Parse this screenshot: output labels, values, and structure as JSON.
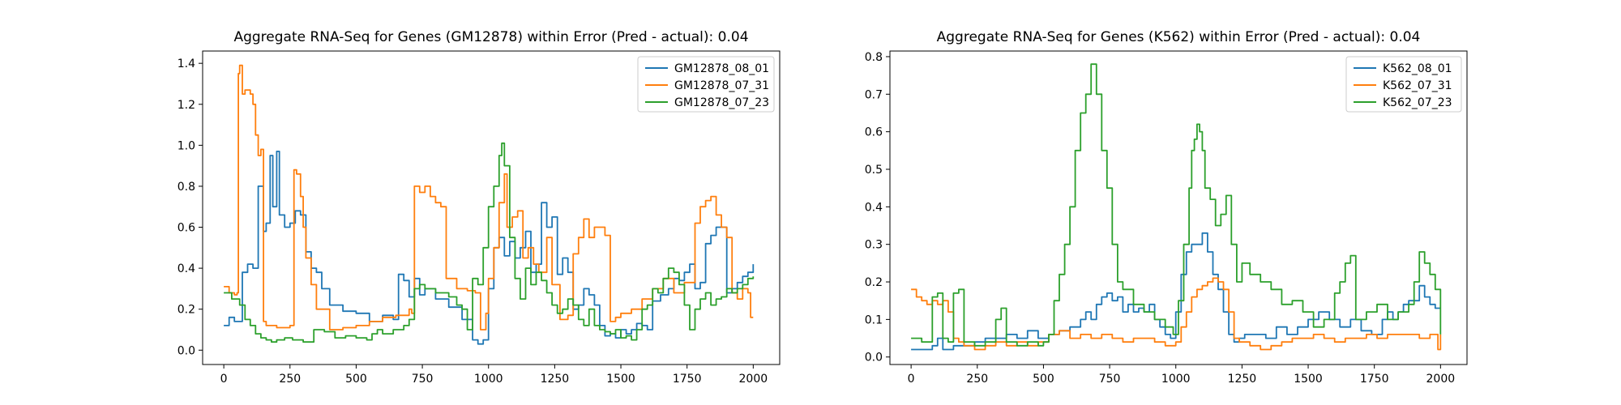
{
  "chart_data": [
    {
      "type": "line",
      "title": "Aggregate RNA-Seq for Genes (GM12878) within Error (Pred - actual): 0.04",
      "xlabel": "",
      "ylabel": "",
      "xlim": [
        -80,
        2100
      ],
      "ylim": [
        -0.07,
        1.46
      ],
      "xticks": [
        0,
        250,
        500,
        750,
        1000,
        1250,
        1500,
        1750,
        2000
      ],
      "yticks": [
        0.0,
        0.2,
        0.4,
        0.6,
        0.8,
        1.0,
        1.2,
        1.4
      ],
      "ytick_labels": [
        "0.0",
        "0.2",
        "0.4",
        "0.6",
        "0.8",
        "1.0",
        "1.2",
        "1.4"
      ],
      "legend": "top-right",
      "grid": false,
      "series": [
        {
          "name": "GM12878_08_01",
          "color": "#1f77b4",
          "x": [
            0,
            20,
            40,
            60,
            70,
            90,
            110,
            130,
            150,
            160,
            175,
            185,
            200,
            210,
            230,
            250,
            270,
            290,
            310,
            330,
            350,
            370,
            400,
            450,
            500,
            550,
            600,
            640,
            660,
            680,
            700,
            720,
            740,
            760,
            800,
            850,
            900,
            940,
            960,
            980,
            1000,
            1020,
            1040,
            1060,
            1080,
            1100,
            1120,
            1140,
            1160,
            1180,
            1200,
            1220,
            1240,
            1260,
            1280,
            1300,
            1320,
            1340,
            1360,
            1380,
            1400,
            1420,
            1440,
            1460,
            1480,
            1500,
            1520,
            1540,
            1560,
            1580,
            1600,
            1620,
            1650,
            1680,
            1700,
            1720,
            1740,
            1760,
            1780,
            1800,
            1820,
            1840,
            1860,
            1880,
            1900,
            1920,
            1940,
            1960,
            1980,
            2000
          ],
          "values": [
            0.12,
            0.16,
            0.14,
            0.14,
            0.38,
            0.42,
            0.4,
            0.8,
            0.58,
            0.62,
            0.95,
            0.7,
            0.97,
            0.66,
            0.6,
            0.62,
            0.68,
            0.66,
            0.48,
            0.4,
            0.38,
            0.3,
            0.22,
            0.19,
            0.18,
            0.14,
            0.17,
            0.15,
            0.37,
            0.34,
            0.26,
            0.35,
            0.27,
            0.3,
            0.25,
            0.21,
            0.15,
            0.05,
            0.03,
            0.05,
            0.3,
            0.5,
            0.55,
            0.46,
            0.53,
            0.45,
            0.5,
            0.58,
            0.38,
            0.42,
            0.72,
            0.6,
            0.65,
            0.37,
            0.45,
            0.38,
            0.2,
            0.22,
            0.3,
            0.27,
            0.22,
            0.12,
            0.07,
            0.08,
            0.06,
            0.1,
            0.08,
            0.1,
            0.13,
            0.12,
            0.1,
            0.24,
            0.27,
            0.3,
            0.35,
            0.34,
            0.38,
            0.42,
            0.3,
            0.33,
            0.52,
            0.56,
            0.6,
            0.6,
            0.28,
            0.3,
            0.33,
            0.36,
            0.38,
            0.42
          ]
        },
        {
          "name": "GM12878_07_31",
          "color": "#ff7f0e",
          "x": [
            0,
            20,
            40,
            50,
            55,
            60,
            70,
            80,
            100,
            110,
            120,
            130,
            140,
            150,
            160,
            200,
            250,
            265,
            275,
            290,
            300,
            310,
            330,
            350,
            400,
            450,
            500,
            550,
            600,
            650,
            700,
            710,
            720,
            740,
            760,
            780,
            800,
            820,
            840,
            880,
            920,
            950,
            970,
            990,
            1000,
            1020,
            1040,
            1060,
            1070,
            1090,
            1110,
            1130,
            1150,
            1170,
            1190,
            1220,
            1240,
            1270,
            1300,
            1320,
            1340,
            1360,
            1380,
            1400,
            1420,
            1440,
            1460,
            1480,
            1500,
            1540,
            1580,
            1620,
            1660,
            1700,
            1740,
            1780,
            1800,
            1820,
            1840,
            1860,
            1880,
            1900,
            1920,
            1940,
            1960,
            1980,
            1990,
            2000
          ],
          "values": [
            0.31,
            0.28,
            0.27,
            0.28,
            1.35,
            1.39,
            1.25,
            1.27,
            1.25,
            1.2,
            1.05,
            0.95,
            0.98,
            0.14,
            0.12,
            0.11,
            0.12,
            0.88,
            0.86,
            0.75,
            0.6,
            0.45,
            0.32,
            0.2,
            0.1,
            0.11,
            0.12,
            0.14,
            0.16,
            0.17,
            0.2,
            0.18,
            0.8,
            0.77,
            0.8,
            0.75,
            0.72,
            0.7,
            0.35,
            0.3,
            0.29,
            0.28,
            0.1,
            0.18,
            0.35,
            0.5,
            0.72,
            0.86,
            0.6,
            0.65,
            0.68,
            0.45,
            0.5,
            0.42,
            0.38,
            0.55,
            0.32,
            0.15,
            0.17,
            0.47,
            0.55,
            0.64,
            0.55,
            0.6,
            0.6,
            0.56,
            0.14,
            0.16,
            0.18,
            0.2,
            0.25,
            0.3,
            0.35,
            0.28,
            0.33,
            0.62,
            0.7,
            0.73,
            0.75,
            0.66,
            0.6,
            0.55,
            0.28,
            0.25,
            0.3,
            0.28,
            0.16,
            0.16
          ]
        },
        {
          "name": "GM12878_07_23",
          "color": "#2ca02c",
          "x": [
            0,
            30,
            60,
            80,
            100,
            120,
            140,
            160,
            180,
            200,
            230,
            260,
            300,
            340,
            380,
            420,
            460,
            500,
            540,
            560,
            580,
            600,
            640,
            680,
            700,
            720,
            740,
            760,
            800,
            850,
            880,
            900,
            920,
            940,
            960,
            980,
            1000,
            1020,
            1040,
            1050,
            1060,
            1080,
            1100,
            1120,
            1140,
            1160,
            1180,
            1200,
            1220,
            1240,
            1260,
            1280,
            1300,
            1320,
            1340,
            1360,
            1380,
            1400,
            1420,
            1440,
            1460,
            1480,
            1500,
            1520,
            1540,
            1560,
            1580,
            1600,
            1620,
            1640,
            1660,
            1680,
            1700,
            1720,
            1740,
            1760,
            1780,
            1800,
            1820,
            1840,
            1860,
            1880,
            1900,
            1920,
            1940,
            1960,
            1980,
            2000
          ],
          "values": [
            0.28,
            0.25,
            0.22,
            0.15,
            0.12,
            0.08,
            0.06,
            0.05,
            0.04,
            0.05,
            0.06,
            0.05,
            0.04,
            0.1,
            0.09,
            0.06,
            0.07,
            0.06,
            0.05,
            0.08,
            0.1,
            0.08,
            0.1,
            0.12,
            0.15,
            0.3,
            0.32,
            0.3,
            0.28,
            0.26,
            0.22,
            0.2,
            0.1,
            0.35,
            0.32,
            0.5,
            0.7,
            0.8,
            0.95,
            1.01,
            0.9,
            0.55,
            0.35,
            0.25,
            0.4,
            0.32,
            0.38,
            0.34,
            0.28,
            0.22,
            0.18,
            0.2,
            0.25,
            0.22,
            0.15,
            0.12,
            0.2,
            0.12,
            0.1,
            0.09,
            0.08,
            0.1,
            0.06,
            0.07,
            0.05,
            0.1,
            0.2,
            0.22,
            0.3,
            0.28,
            0.35,
            0.4,
            0.38,
            0.32,
            0.22,
            0.1,
            0.2,
            0.25,
            0.28,
            0.22,
            0.25,
            0.26,
            0.3,
            0.28,
            0.3,
            0.32,
            0.35,
            0.36
          ]
        }
      ]
    },
    {
      "type": "line",
      "title": "Aggregate RNA-Seq for Genes (K562) within Error (Pred - actual): 0.04",
      "xlabel": "",
      "ylabel": "",
      "xlim": [
        -80,
        2100
      ],
      "ylim": [
        -0.02,
        0.815
      ],
      "xticks": [
        0,
        250,
        500,
        750,
        1000,
        1250,
        1500,
        1750,
        2000
      ],
      "yticks": [
        0.0,
        0.1,
        0.2,
        0.3,
        0.4,
        0.5,
        0.6,
        0.7,
        0.8
      ],
      "ytick_labels": [
        "0.0",
        "0.1",
        "0.2",
        "0.3",
        "0.4",
        "0.5",
        "0.6",
        "0.7",
        "0.8"
      ],
      "legend": "top-right",
      "grid": false,
      "series": [
        {
          "name": "K562_08_01",
          "color": "#1f77b4",
          "x": [
            0,
            40,
            80,
            100,
            120,
            160,
            200,
            240,
            280,
            320,
            360,
            400,
            440,
            480,
            520,
            560,
            600,
            640,
            660,
            680,
            700,
            720,
            740,
            760,
            780,
            800,
            820,
            840,
            860,
            880,
            900,
            920,
            940,
            960,
            980,
            1000,
            1020,
            1040,
            1060,
            1080,
            1100,
            1120,
            1140,
            1160,
            1180,
            1200,
            1220,
            1240,
            1260,
            1300,
            1340,
            1380,
            1420,
            1460,
            1500,
            1540,
            1580,
            1620,
            1660,
            1700,
            1740,
            1780,
            1800,
            1820,
            1840,
            1860,
            1880,
            1900,
            1920,
            1940,
            1960,
            1980,
            2000
          ],
          "values": [
            0.02,
            0.02,
            0.03,
            0.05,
            0.02,
            0.03,
            0.03,
            0.04,
            0.05,
            0.05,
            0.06,
            0.05,
            0.07,
            0.05,
            0.06,
            0.07,
            0.08,
            0.1,
            0.12,
            0.1,
            0.14,
            0.16,
            0.17,
            0.15,
            0.16,
            0.12,
            0.14,
            0.12,
            0.13,
            0.12,
            0.14,
            0.1,
            0.08,
            0.06,
            0.05,
            0.12,
            0.22,
            0.28,
            0.3,
            0.3,
            0.33,
            0.28,
            0.22,
            0.18,
            0.12,
            0.06,
            0.04,
            0.05,
            0.06,
            0.06,
            0.05,
            0.08,
            0.06,
            0.08,
            0.1,
            0.12,
            0.1,
            0.08,
            0.1,
            0.07,
            0.06,
            0.1,
            0.12,
            0.1,
            0.12,
            0.14,
            0.15,
            0.15,
            0.19,
            0.16,
            0.14,
            0.13,
            0.13
          ]
        },
        {
          "name": "K562_07_31",
          "color": "#ff7f0e",
          "x": [
            0,
            20,
            40,
            60,
            80,
            100,
            120,
            140,
            160,
            180,
            200,
            240,
            280,
            320,
            360,
            400,
            440,
            480,
            520,
            560,
            600,
            640,
            680,
            720,
            760,
            800,
            840,
            880,
            920,
            960,
            1000,
            1020,
            1040,
            1060,
            1080,
            1100,
            1120,
            1140,
            1160,
            1180,
            1200,
            1220,
            1240,
            1280,
            1320,
            1360,
            1400,
            1440,
            1480,
            1520,
            1560,
            1600,
            1640,
            1680,
            1720,
            1760,
            1800,
            1840,
            1880,
            1920,
            1960,
            1980,
            1990,
            2000
          ],
          "values": [
            0.18,
            0.16,
            0.15,
            0.14,
            0.15,
            0.14,
            0.15,
            0.12,
            0.05,
            0.04,
            0.03,
            0.02,
            0.03,
            0.04,
            0.03,
            0.04,
            0.03,
            0.04,
            0.06,
            0.07,
            0.05,
            0.06,
            0.05,
            0.06,
            0.05,
            0.04,
            0.05,
            0.05,
            0.04,
            0.03,
            0.04,
            0.08,
            0.12,
            0.16,
            0.18,
            0.19,
            0.2,
            0.21,
            0.2,
            0.18,
            0.12,
            0.05,
            0.04,
            0.03,
            0.02,
            0.03,
            0.04,
            0.05,
            0.05,
            0.06,
            0.05,
            0.04,
            0.05,
            0.05,
            0.06,
            0.05,
            0.06,
            0.06,
            0.06,
            0.05,
            0.06,
            0.06,
            0.02,
            0.06
          ]
        },
        {
          "name": "K562_07_23",
          "color": "#2ca02c",
          "x": [
            0,
            40,
            80,
            100,
            120,
            140,
            160,
            180,
            200,
            240,
            280,
            320,
            340,
            360,
            400,
            440,
            480,
            500,
            520,
            540,
            560,
            580,
            600,
            620,
            640,
            660,
            680,
            700,
            720,
            740,
            760,
            780,
            800,
            840,
            880,
            920,
            960,
            990,
            1010,
            1030,
            1050,
            1060,
            1070,
            1080,
            1090,
            1100,
            1110,
            1130,
            1150,
            1170,
            1190,
            1210,
            1230,
            1250,
            1280,
            1320,
            1360,
            1400,
            1440,
            1480,
            1520,
            1560,
            1600,
            1620,
            1640,
            1660,
            1680,
            1720,
            1760,
            1800,
            1840,
            1880,
            1900,
            1920,
            1940,
            1960,
            1980,
            2000
          ],
          "values": [
            0.05,
            0.04,
            0.16,
            0.17,
            0.05,
            0.04,
            0.17,
            0.18,
            0.04,
            0.03,
            0.04,
            0.1,
            0.13,
            0.04,
            0.03,
            0.04,
            0.03,
            0.04,
            0.06,
            0.15,
            0.22,
            0.3,
            0.4,
            0.55,
            0.65,
            0.7,
            0.78,
            0.7,
            0.55,
            0.45,
            0.3,
            0.2,
            0.18,
            0.14,
            0.12,
            0.1,
            0.08,
            0.06,
            0.15,
            0.3,
            0.45,
            0.55,
            0.58,
            0.62,
            0.6,
            0.55,
            0.45,
            0.42,
            0.35,
            0.38,
            0.43,
            0.3,
            0.2,
            0.25,
            0.22,
            0.2,
            0.18,
            0.14,
            0.15,
            0.12,
            0.08,
            0.1,
            0.17,
            0.2,
            0.25,
            0.27,
            0.1,
            0.12,
            0.14,
            0.1,
            0.12,
            0.14,
            0.2,
            0.28,
            0.25,
            0.22,
            0.18,
            0.06
          ]
        }
      ]
    }
  ]
}
